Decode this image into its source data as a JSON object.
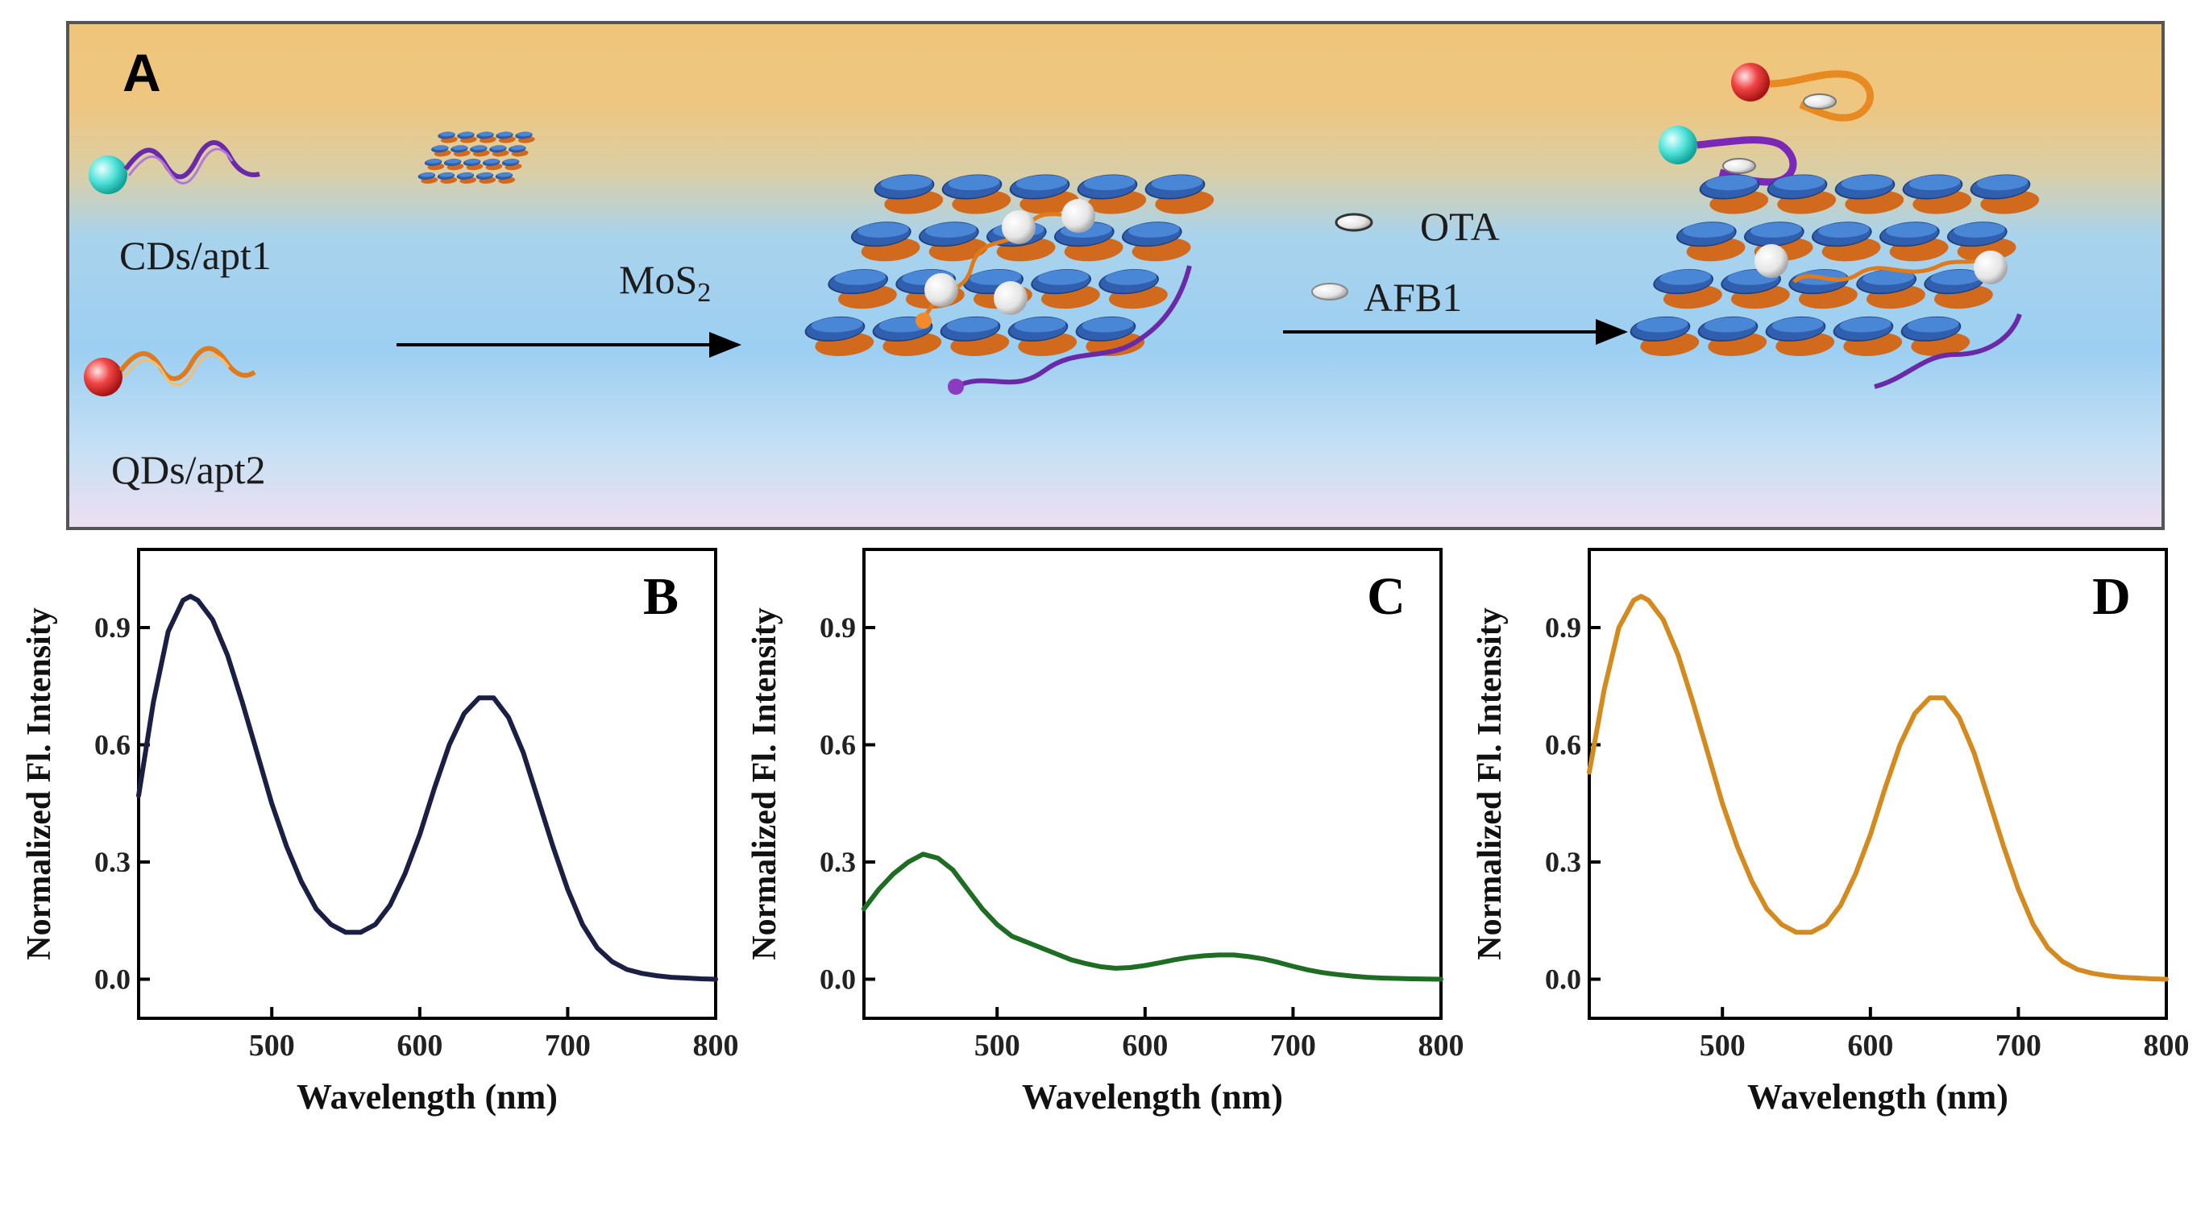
{
  "panel_a": {
    "label": "A",
    "probe1": "CDs/apt1",
    "probe2": "QDs/apt2",
    "arrow1": {
      "main": "MoS",
      "sub": "2"
    },
    "target1": "OTA",
    "target2": "AFB1"
  },
  "chart_data": [
    {
      "panel": "B",
      "type": "line",
      "xlabel": "Wavelength (nm)",
      "ylabel": "Normalized Fl. Intensity",
      "xlim": [
        410,
        800
      ],
      "ylim": [
        -0.1,
        1.1
      ],
      "xticks": [
        "500",
        "600",
        "700",
        "800"
      ],
      "yticks": [
        "0.0",
        "0.3",
        "0.6",
        "0.9"
      ],
      "color": "#1b1f44",
      "series": [
        {
          "name": "B",
          "x": [
            410,
            420,
            430,
            440,
            445,
            450,
            460,
            470,
            480,
            490,
            500,
            510,
            520,
            530,
            540,
            550,
            560,
            570,
            580,
            590,
            600,
            610,
            620,
            630,
            640,
            650,
            660,
            670,
            680,
            690,
            700,
            710,
            720,
            730,
            740,
            750,
            760,
            770,
            780,
            790,
            800
          ],
          "y": [
            0.47,
            0.71,
            0.89,
            0.97,
            0.98,
            0.97,
            0.92,
            0.83,
            0.71,
            0.58,
            0.45,
            0.34,
            0.25,
            0.18,
            0.14,
            0.12,
            0.12,
            0.14,
            0.19,
            0.27,
            0.37,
            0.49,
            0.6,
            0.68,
            0.72,
            0.72,
            0.67,
            0.58,
            0.46,
            0.34,
            0.23,
            0.14,
            0.08,
            0.045,
            0.025,
            0.015,
            0.009,
            0.005,
            0.003,
            0.001,
            0.0
          ]
        }
      ]
    },
    {
      "panel": "C",
      "type": "line",
      "xlabel": "Wavelength (nm)",
      "ylabel": "Normalized Fl. Intensity",
      "xlim": [
        410,
        800
      ],
      "ylim": [
        -0.1,
        1.1
      ],
      "xticks": [
        "500",
        "600",
        "700",
        "800"
      ],
      "yticks": [
        "0.0",
        "0.3",
        "0.6",
        "0.9"
      ],
      "color": "#1f6d24",
      "series": [
        {
          "name": "C",
          "x": [
            410,
            420,
            430,
            440,
            450,
            460,
            470,
            480,
            490,
            500,
            510,
            520,
            530,
            540,
            550,
            560,
            570,
            580,
            590,
            600,
            610,
            620,
            630,
            640,
            650,
            660,
            670,
            680,
            690,
            700,
            710,
            720,
            730,
            740,
            750,
            760,
            770,
            780,
            790,
            800
          ],
          "y": [
            0.18,
            0.23,
            0.27,
            0.3,
            0.32,
            0.31,
            0.28,
            0.23,
            0.18,
            0.14,
            0.11,
            0.095,
            0.08,
            0.065,
            0.05,
            0.04,
            0.032,
            0.028,
            0.03,
            0.035,
            0.042,
            0.05,
            0.056,
            0.06,
            0.062,
            0.062,
            0.058,
            0.052,
            0.043,
            0.033,
            0.024,
            0.017,
            0.012,
            0.008,
            0.005,
            0.003,
            0.002,
            0.001,
            0.0005,
            0.0
          ]
        }
      ]
    },
    {
      "panel": "D",
      "type": "line",
      "xlabel": "Wavelength (nm)",
      "ylabel": "Normalized Fl. Intensity",
      "xlim": [
        410,
        800
      ],
      "ylim": [
        -0.1,
        1.1
      ],
      "xticks": [
        "500",
        "600",
        "700",
        "800"
      ],
      "yticks": [
        "0.0",
        "0.3",
        "0.6",
        "0.9"
      ],
      "color": "#d38a1f",
      "series": [
        {
          "name": "D",
          "x": [
            410,
            420,
            430,
            440,
            445,
            450,
            460,
            470,
            480,
            490,
            500,
            510,
            520,
            530,
            540,
            550,
            560,
            570,
            580,
            590,
            600,
            610,
            620,
            630,
            640,
            650,
            660,
            670,
            680,
            690,
            700,
            710,
            720,
            730,
            740,
            750,
            760,
            770,
            780,
            790,
            800
          ],
          "y": [
            0.53,
            0.74,
            0.9,
            0.97,
            0.98,
            0.97,
            0.92,
            0.83,
            0.71,
            0.58,
            0.45,
            0.34,
            0.25,
            0.18,
            0.14,
            0.12,
            0.12,
            0.14,
            0.19,
            0.27,
            0.37,
            0.49,
            0.6,
            0.68,
            0.72,
            0.72,
            0.67,
            0.58,
            0.46,
            0.34,
            0.23,
            0.14,
            0.08,
            0.045,
            0.025,
            0.015,
            0.009,
            0.005,
            0.003,
            0.001,
            0.0
          ]
        }
      ]
    }
  ]
}
